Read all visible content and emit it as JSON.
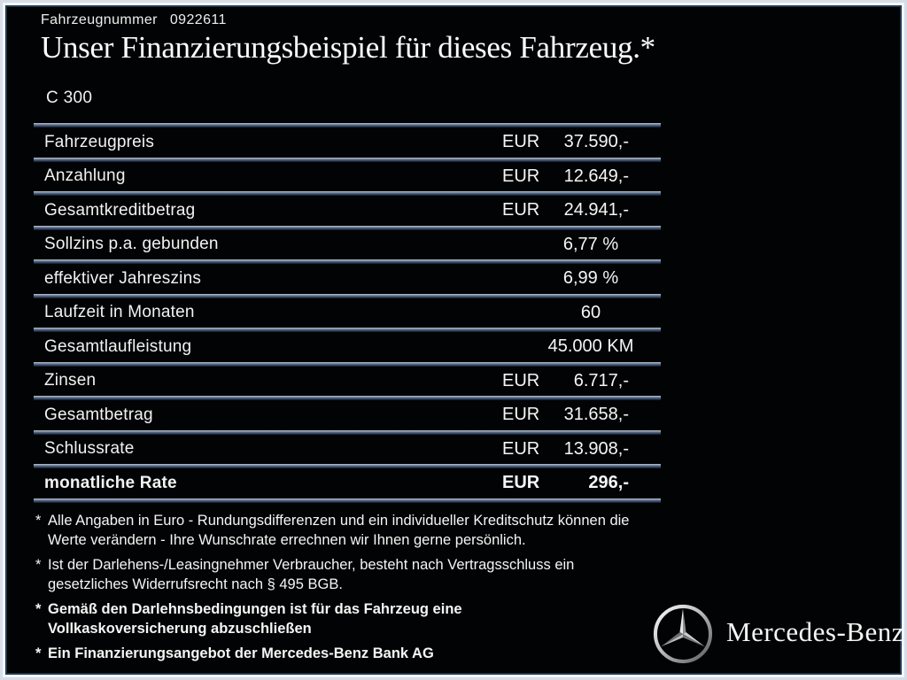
{
  "colors": {
    "background": "#020304",
    "frame_outer": "#d6dde7",
    "frame_inner_border": "#22384f",
    "divider_light": "#aab4bf",
    "divider_blue": "#44597c",
    "text": "#f5f5f5"
  },
  "header": {
    "vehicle_number_label": "Fahrzeugnummer",
    "vehicle_number": "0922611",
    "title": "Unser Finanzierungsbeispiel für dieses Fahrzeug.*",
    "model": "C 300"
  },
  "table": {
    "rows": [
      {
        "label": "Fahrzeugpreis",
        "currency": "EUR",
        "value": "37.590,-",
        "bold": false
      },
      {
        "label": "Anzahlung",
        "currency": "EUR",
        "value": "12.649,-",
        "bold": false
      },
      {
        "label": "Gesamtkreditbetrag",
        "currency": "EUR",
        "value": "24.941,-",
        "bold": false
      },
      {
        "label": "Sollzins p.a. gebunden",
        "currency": "",
        "value": "6,77 %",
        "bold": false
      },
      {
        "label": "effektiver Jahreszins",
        "currency": "",
        "value": "6,99 %",
        "bold": false
      },
      {
        "label": "Laufzeit in Monaten",
        "currency": "",
        "value": "60",
        "bold": false
      },
      {
        "label": "Gesamtlaufleistung",
        "currency": "",
        "value": "45.000 KM",
        "bold": false
      },
      {
        "label": "Zinsen",
        "currency": "EUR",
        "value": "6.717,-",
        "bold": false
      },
      {
        "label": "Gesamtbetrag",
        "currency": "EUR",
        "value": "31.658,-",
        "bold": false
      },
      {
        "label": "Schlussrate",
        "currency": "EUR",
        "value": "13.908,-",
        "bold": false
      },
      {
        "label": "monatliche Rate",
        "currency": "EUR",
        "value": "296,-",
        "bold": true
      }
    ]
  },
  "footnotes": [
    {
      "marker": "*",
      "bold": false,
      "lines": [
        "Alle Angaben in Euro - Rundungsdifferenzen und ein individueller Kreditschutz können die",
        "Werte verändern - Ihre Wunschrate errechnen wir Ihnen gerne persönlich."
      ]
    },
    {
      "marker": "*",
      "bold": false,
      "lines": [
        "Ist der Darlehens-/Leasingnehmer Verbraucher, besteht nach Vertragsschluss ein",
        "gesetzliches Widerrufsrecht nach § 495 BGB."
      ]
    },
    {
      "marker": "*",
      "bold": true,
      "lines": [
        "Gemäß den Darlehnsbedingungen ist für das Fahrzeug eine",
        "Vollkaskoversicherung abzuschließen"
      ]
    },
    {
      "marker": "*",
      "bold": true,
      "lines": [
        "Ein Finanzierungsangebot der Mercedes-Benz Bank AG"
      ]
    }
  ],
  "brand": {
    "logo_icon": "mercedes-star-icon",
    "name": "Mercedes-Benz"
  }
}
